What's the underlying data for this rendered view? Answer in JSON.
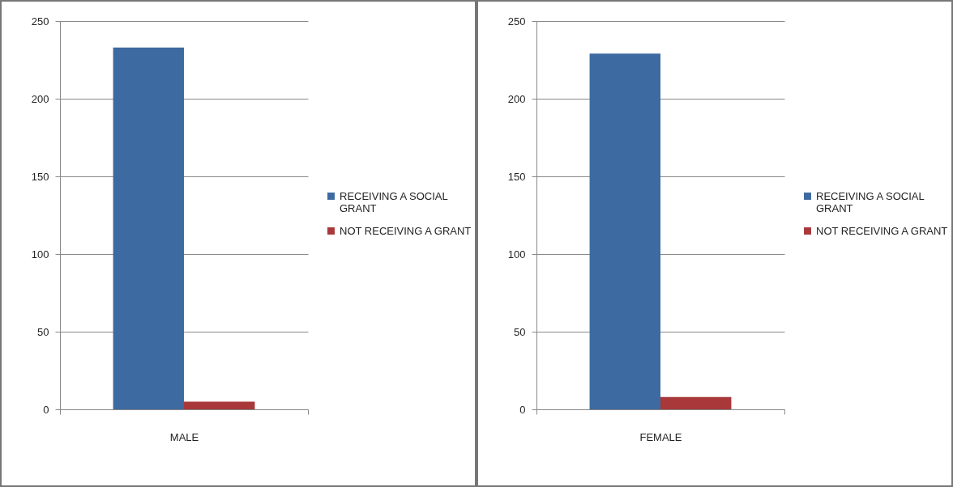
{
  "chart_data": [
    {
      "type": "bar",
      "categories": [
        "MALE"
      ],
      "series": [
        {
          "name": "RECEIVING A SOCIAL GRANT",
          "color": "#3d6aa0",
          "values": [
            233
          ]
        },
        {
          "name": "NOT RECEIVING A GRANT",
          "color": "#a8383a",
          "values": [
            5
          ]
        }
      ],
      "ylim": [
        0,
        250
      ],
      "yticks": [
        0,
        50,
        100,
        150,
        200,
        250
      ],
      "grid": "y",
      "legend": "right"
    },
    {
      "type": "bar",
      "categories": [
        "FEMALE"
      ],
      "series": [
        {
          "name": "RECEIVING A SOCIAL GRANT",
          "color": "#3d6aa0",
          "values": [
            229
          ]
        },
        {
          "name": "NOT RECEIVING A GRANT",
          "color": "#a8383a",
          "values": [
            8
          ]
        }
      ],
      "ylim": [
        0,
        250
      ],
      "yticks": [
        0,
        50,
        100,
        150,
        200,
        250
      ],
      "grid": "y",
      "legend": "right"
    }
  ]
}
